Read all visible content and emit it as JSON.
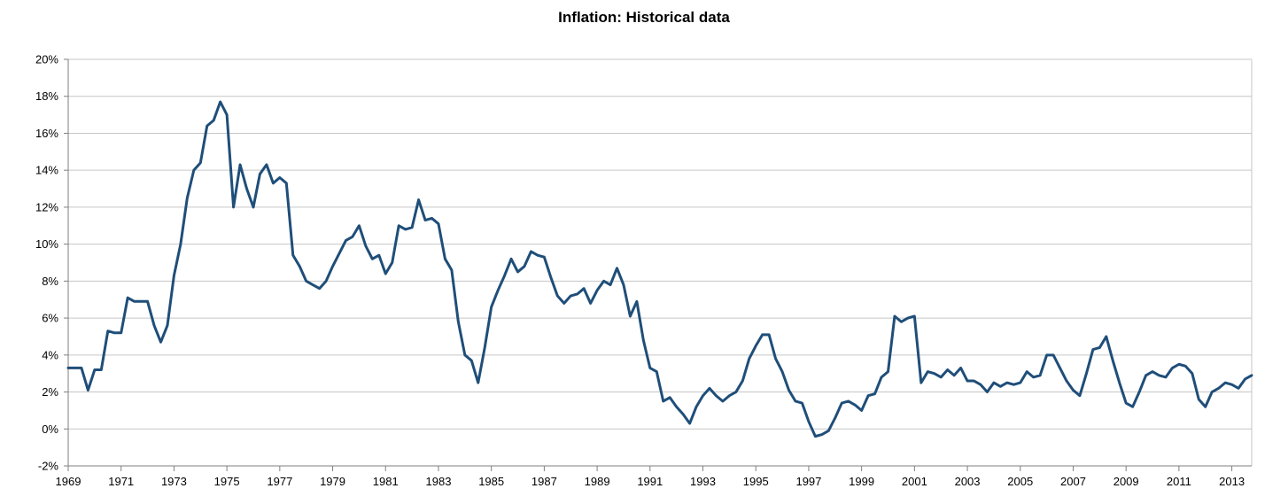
{
  "chart_data": {
    "type": "line",
    "title": "Inflation: Historical data",
    "xlabel": "",
    "ylabel": "",
    "xlim": [
      1969,
      2013.75
    ],
    "ylim": [
      -2,
      20
    ],
    "grid": true,
    "legend": "none",
    "y_ticks": [
      "-2%",
      "0%",
      "2%",
      "4%",
      "6%",
      "8%",
      "10%",
      "12%",
      "14%",
      "16%",
      "18%",
      "20%"
    ],
    "y_tick_values": [
      -2,
      0,
      2,
      4,
      6,
      8,
      10,
      12,
      14,
      16,
      18,
      20
    ],
    "x_ticks": [
      "1969",
      "1971",
      "1973",
      "1975",
      "1977",
      "1979",
      "1981",
      "1983",
      "1985",
      "1987",
      "1989",
      "1991",
      "1993",
      "1995",
      "1997",
      "1999",
      "2001",
      "2003",
      "2005",
      "2007",
      "2009",
      "2011",
      "2013"
    ],
    "x_tick_values": [
      1969,
      1971,
      1973,
      1975,
      1977,
      1979,
      1981,
      1983,
      1985,
      1987,
      1989,
      1991,
      1993,
      1995,
      1997,
      1999,
      2001,
      2003,
      2005,
      2007,
      2009,
      2011,
      2013
    ],
    "series": [
      {
        "color": "#1f4e79",
        "x": [
          1969.0,
          1969.25,
          1969.5,
          1969.75,
          1970.0,
          1970.25,
          1970.5,
          1970.75,
          1971.0,
          1971.25,
          1971.5,
          1971.75,
          1972.0,
          1972.25,
          1972.5,
          1972.75,
          1973.0,
          1973.25,
          1973.5,
          1973.75,
          1974.0,
          1974.25,
          1974.5,
          1974.75,
          1975.0,
          1975.25,
          1975.5,
          1975.75,
          1976.0,
          1976.25,
          1976.5,
          1976.75,
          1977.0,
          1977.25,
          1977.5,
          1977.75,
          1978.0,
          1978.25,
          1978.5,
          1978.75,
          1979.0,
          1979.25,
          1979.5,
          1979.75,
          1980.0,
          1980.25,
          1980.5,
          1980.75,
          1981.0,
          1981.25,
          1981.5,
          1981.75,
          1982.0,
          1982.25,
          1982.5,
          1982.75,
          1983.0,
          1983.25,
          1983.5,
          1983.75,
          1984.0,
          1984.25,
          1984.5,
          1984.75,
          1985.0,
          1985.25,
          1985.5,
          1985.75,
          1986.0,
          1986.25,
          1986.5,
          1986.75,
          1987.0,
          1987.25,
          1987.5,
          1987.75,
          1988.0,
          1988.25,
          1988.5,
          1988.75,
          1989.0,
          1989.25,
          1989.5,
          1989.75,
          1990.0,
          1990.25,
          1990.5,
          1990.75,
          1991.0,
          1991.25,
          1991.5,
          1991.75,
          1992.0,
          1992.25,
          1992.5,
          1992.75,
          1993.0,
          1993.25,
          1993.5,
          1993.75,
          1994.0,
          1994.25,
          1994.5,
          1994.75,
          1995.0,
          1995.25,
          1995.5,
          1995.75,
          1996.0,
          1996.25,
          1996.5,
          1996.75,
          1997.0,
          1997.25,
          1997.5,
          1997.75,
          1998.0,
          1998.25,
          1998.5,
          1998.75,
          1999.0,
          1999.25,
          1999.5,
          1999.75,
          2000.0,
          2000.25,
          2000.5,
          2000.75,
          2001.0,
          2001.25,
          2001.5,
          2001.75,
          2002.0,
          2002.25,
          2002.5,
          2002.75,
          2003.0,
          2003.25,
          2003.5,
          2003.75,
          2004.0,
          2004.25,
          2004.5,
          2004.75,
          2005.0,
          2005.25,
          2005.5,
          2005.75,
          2006.0,
          2006.25,
          2006.5,
          2006.75,
          2007.0,
          2007.25,
          2007.5,
          2007.75,
          2008.0,
          2008.25,
          2008.5,
          2008.75,
          2009.0,
          2009.25,
          2009.5,
          2009.75,
          2010.0,
          2010.25,
          2010.5,
          2010.75,
          2011.0,
          2011.25,
          2011.5,
          2011.75,
          2012.0,
          2012.25,
          2012.5,
          2012.75,
          2013.0,
          2013.25,
          2013.5,
          2013.75
        ],
        "y": [
          3.3,
          3.3,
          3.3,
          2.1,
          3.2,
          3.2,
          5.3,
          5.2,
          5.2,
          7.1,
          6.9,
          6.9,
          6.9,
          5.6,
          4.7,
          5.6,
          8.3,
          10.0,
          12.5,
          14.0,
          14.4,
          16.4,
          16.7,
          17.7,
          17.0,
          12.0,
          14.3,
          13.0,
          12.0,
          13.8,
          14.3,
          13.3,
          13.6,
          13.3,
          9.4,
          8.8,
          8.0,
          7.8,
          7.6,
          8.0,
          8.8,
          9.5,
          10.2,
          10.4,
          11.0,
          9.9,
          9.2,
          9.4,
          8.4,
          9.0,
          11.0,
          10.8,
          10.9,
          12.4,
          11.3,
          11.4,
          11.1,
          9.2,
          8.6,
          5.8,
          4.0,
          3.7,
          2.5,
          4.4,
          6.6,
          7.5,
          8.3,
          9.2,
          8.5,
          8.8,
          9.6,
          9.4,
          9.3,
          8.2,
          7.2,
          6.8,
          7.2,
          7.3,
          7.6,
          6.8,
          7.5,
          8.0,
          7.8,
          8.7,
          7.8,
          6.1,
          6.9,
          4.8,
          3.3,
          3.1,
          1.5,
          1.7,
          1.2,
          0.8,
          0.3,
          1.2,
          1.8,
          2.2,
          1.8,
          1.5,
          1.8,
          2.0,
          2.6,
          3.8,
          4.5,
          5.1,
          5.1,
          3.8,
          3.1,
          2.1,
          1.5,
          1.4,
          0.4,
          -0.4,
          -0.3,
          -0.1,
          0.6,
          1.4,
          1.5,
          1.3,
          1.0,
          1.8,
          1.9,
          2.8,
          3.1,
          6.1,
          5.8,
          6.0,
          6.1,
          2.5,
          3.1,
          3.0,
          2.8,
          3.2,
          2.9,
          3.3,
          2.6,
          2.6,
          2.4,
          2.0,
          2.5,
          2.3,
          2.5,
          2.4,
          2.5,
          3.1,
          2.8,
          2.9,
          4.0,
          4.0,
          3.3,
          2.6,
          2.1,
          1.8,
          3.0,
          4.3,
          4.4,
          5.0,
          3.7,
          2.5,
          1.4,
          1.2,
          2.0,
          2.9,
          3.1,
          2.9,
          2.8,
          3.3,
          3.5,
          3.4,
          3.0,
          1.6,
          1.2,
          2.0,
          2.2,
          2.5,
          2.4,
          2.2,
          2.7,
          2.9
        ]
      }
    ]
  }
}
